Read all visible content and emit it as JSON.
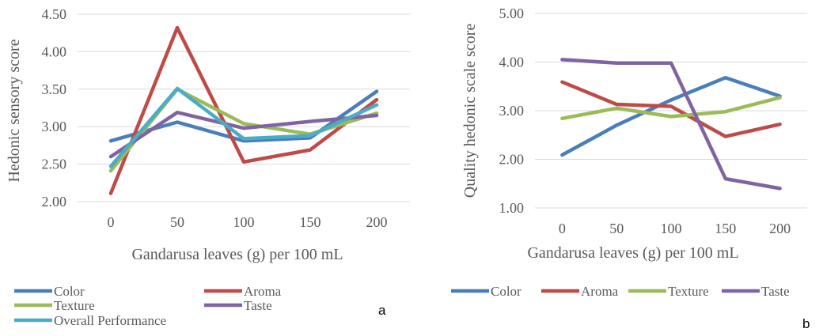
{
  "chart_data": [
    {
      "type": "line",
      "panel_label": "a",
      "title": "",
      "xlabel": "Gandarusa leaves (g) per 100 mL",
      "ylabel": "Hedonic sensory score",
      "x": [
        "0",
        "50",
        "100",
        "150",
        "200"
      ],
      "ylim": [
        2.0,
        4.5
      ],
      "yticks": [
        "2.00",
        "2.50",
        "3.00",
        "3.50",
        "4.00",
        "4.50"
      ],
      "grid": true,
      "legend_position": "bottom",
      "series": [
        {
          "name": "Color",
          "color": "#4A7EBB",
          "values": [
            2.81,
            3.06,
            2.81,
            2.85,
            3.47
          ]
        },
        {
          "name": "Aroma",
          "color": "#BE4B48",
          "values": [
            2.11,
            4.32,
            2.53,
            2.69,
            3.36
          ]
        },
        {
          "name": "Texture",
          "color": "#9BBB59",
          "values": [
            2.41,
            3.5,
            3.04,
            2.9,
            3.18
          ]
        },
        {
          "name": "Taste",
          "color": "#8064A2",
          "values": [
            2.6,
            3.19,
            2.98,
            3.07,
            3.15
          ]
        },
        {
          "name": "Overall Performance",
          "color": "#4BACC6",
          "values": [
            2.47,
            3.51,
            2.84,
            2.88,
            3.29
          ]
        }
      ]
    },
    {
      "type": "line",
      "panel_label": "b",
      "title": "",
      "xlabel": "Gandarusa leaves (g) per 100 mL",
      "ylabel": "Quality hedonic scale score",
      "x": [
        "0",
        "50",
        "100",
        "150",
        "200"
      ],
      "ylim": [
        1.0,
        5.0
      ],
      "yticks": [
        "1.00",
        "2.00",
        "3.00",
        "4.00",
        "5.00"
      ],
      "grid": true,
      "legend_position": "bottom",
      "series": [
        {
          "name": "Color",
          "color": "#4A7EBB",
          "values": [
            2.09,
            2.7,
            3.22,
            3.68,
            3.3
          ]
        },
        {
          "name": "Aroma",
          "color": "#BE4B48",
          "values": [
            3.59,
            3.13,
            3.09,
            2.47,
            2.72
          ]
        },
        {
          "name": "Texture",
          "color": "#9BBB59",
          "values": [
            2.84,
            3.05,
            2.88,
            2.98,
            3.27
          ]
        },
        {
          "name": "Taste",
          "color": "#8064A2",
          "values": [
            4.05,
            3.98,
            3.98,
            1.6,
            1.4
          ]
        }
      ]
    }
  ]
}
